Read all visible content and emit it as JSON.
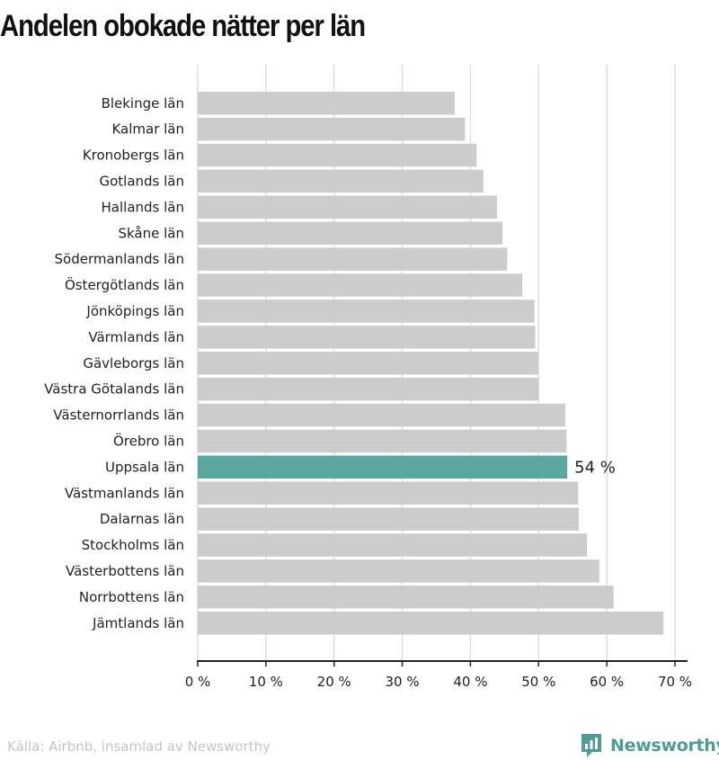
{
  "title": "Andelen obokade nätter per län",
  "source": "Källa: Airbnb, insamlad av Newsworthy",
  "brand": {
    "name": "Newsworthy",
    "icon": "newsworthy-logo-icon"
  },
  "colors": {
    "bar": "#cccccc",
    "highlight": "#5aa89d",
    "grid": "#dddddd",
    "axis": "#222222",
    "brand": "#4f9c94"
  },
  "chart_data": {
    "type": "bar",
    "orientation": "horizontal",
    "categories": [
      "Blekinge län",
      "Kalmar län",
      "Kronobergs län",
      "Gotlands län",
      "Hallands län",
      "Skåne län",
      "Södermanlands län",
      "Östergötlands län",
      "Jönköpings län",
      "Värmlands län",
      "Gävleborgs län",
      "Västra Götalands län",
      "Västernorrlands län",
      "Örebro län",
      "Uppsala län",
      "Västmanlands län",
      "Dalarnas län",
      "Stockholms län",
      "Västerbottens län",
      "Norrbottens län",
      "Jämtlands län"
    ],
    "values": [
      37.7,
      39.2,
      40.9,
      41.9,
      43.9,
      44.7,
      45.4,
      47.6,
      49.4,
      49.5,
      49.9,
      50.0,
      53.9,
      54.1,
      54.2,
      55.8,
      55.9,
      57.1,
      58.9,
      61.0,
      68.3
    ],
    "highlight": {
      "category": "Uppsala län",
      "label": "54 %"
    },
    "xlim": [
      0,
      70
    ],
    "xticks": [
      0,
      10,
      20,
      30,
      40,
      50,
      60,
      70
    ],
    "tick_labels": [
      "0 %",
      "10 %",
      "20 %",
      "30 %",
      "40 %",
      "50 %",
      "60 %",
      "70 %"
    ],
    "grid": true,
    "xlabel": "",
    "ylabel": ""
  }
}
